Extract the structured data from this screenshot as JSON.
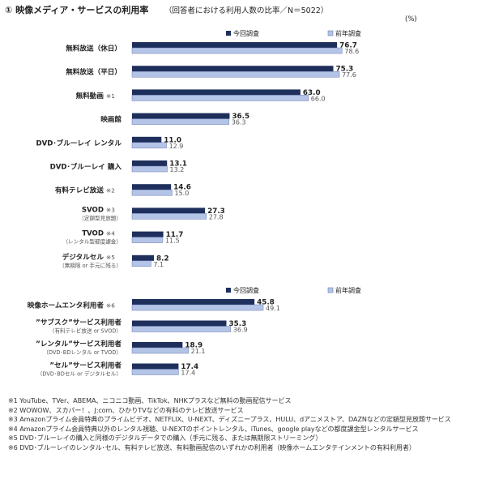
{
  "chart_data": {
    "type": "bar",
    "orientation": "horizontal",
    "title": "① 映像メディア・サービスの利用率",
    "subtitle": "（回答者における利用人数の比率／N＝5022）",
    "unit": "(%)",
    "xlim": [
      0,
      100
    ],
    "grid": false,
    "legend_position": "top-right",
    "series_names": [
      "今回調査",
      "前年調査"
    ],
    "colors": {
      "current": "#1f2f5c",
      "previous": "#b4c4e6",
      "previous_stroke": "#6d7fb3",
      "text": "#222222",
      "sub": "#555555"
    },
    "groups": [
      {
        "categories": [
          {
            "label": "無料放送（休日）",
            "note": "",
            "sub": ""
          },
          {
            "label": "無料放送（平日）",
            "note": "",
            "sub": ""
          },
          {
            "label": "無料動画",
            "note": "※1",
            "sub": ""
          },
          {
            "label": "映画館",
            "note": "",
            "sub": ""
          },
          {
            "label": "DVD･ブルーレイ レンタル",
            "note": "",
            "sub": ""
          },
          {
            "label": "DVD･ブルーレイ 購入",
            "note": "",
            "sub": ""
          },
          {
            "label": "有料テレビ放送",
            "note": "※2",
            "sub": ""
          },
          {
            "label": "SVOD",
            "note": "※3",
            "sub": "（定額型見放題）"
          },
          {
            "label": "TVOD",
            "note": "※4",
            "sub": "（レンタル型都度課金）"
          },
          {
            "label": "デジタルセル",
            "note": "※5",
            "sub": "（無期限 or 手元に残る）"
          }
        ],
        "series": [
          {
            "name": "今回調査",
            "values": [
              76.7,
              75.3,
              63.0,
              36.5,
              11.0,
              13.1,
              14.6,
              27.3,
              11.7,
              8.2
            ]
          },
          {
            "name": "前年調査",
            "values": [
              78.6,
              77.6,
              66.0,
              36.3,
              12.9,
              13.2,
              15.0,
              27.8,
              11.5,
              7.1
            ]
          }
        ]
      },
      {
        "categories": [
          {
            "label": "映像ホームエンタ利用者",
            "note": "※6",
            "sub": ""
          },
          {
            "label": "”サブスク”サービス利用者",
            "note": "",
            "sub": "（有料テレビ放送 or SVOD）"
          },
          {
            "label": "”レンタル”サービス利用者",
            "note": "",
            "sub": "（DVD･BDレンタル or TVOD）"
          },
          {
            "label": "”セル”サービス利用者",
            "note": "",
            "sub": "（DVD･BDセル or デジタルセル）"
          }
        ],
        "series": [
          {
            "name": "今回調査",
            "values": [
              45.8,
              35.3,
              18.9,
              17.4
            ]
          },
          {
            "name": "前年調査",
            "values": [
              49.1,
              36.9,
              21.1,
              17.4
            ]
          }
        ]
      }
    ]
  },
  "footnotes": [
    "※1 YouTube、TVer、ABEMA、ニコニコ動画、TikTok、NHKプラスなど無料の動画配信サービス",
    "※2 WOWOW、スカパー！、J:com、ひかりTVなどの有料のテレビ放送サービス",
    "※3 Amazonプライム会員特典のプライムビデオ、NETFLIX、U-NEXT、ディズニープラス、HULU、dアニメストア、DAZNなどの定額型見放題サービス",
    "※4 Amazonプライム会員特典以外のレンタル視聴、U-NEXTのポイントレンタル、iTunes、google playなどの都度課金型レンタルサービス",
    "※5 DVD･ブルーレイの購入と同様のデジタルデータでの購入（手元に残る、または無期限ストリーミング）",
    "※6 DVD･ブルーレイのレンタル･セル、有料テレビ放送、有料動画配信のいずれかの利用者（映像ホームエンタテインメントの有料利用者）"
  ]
}
